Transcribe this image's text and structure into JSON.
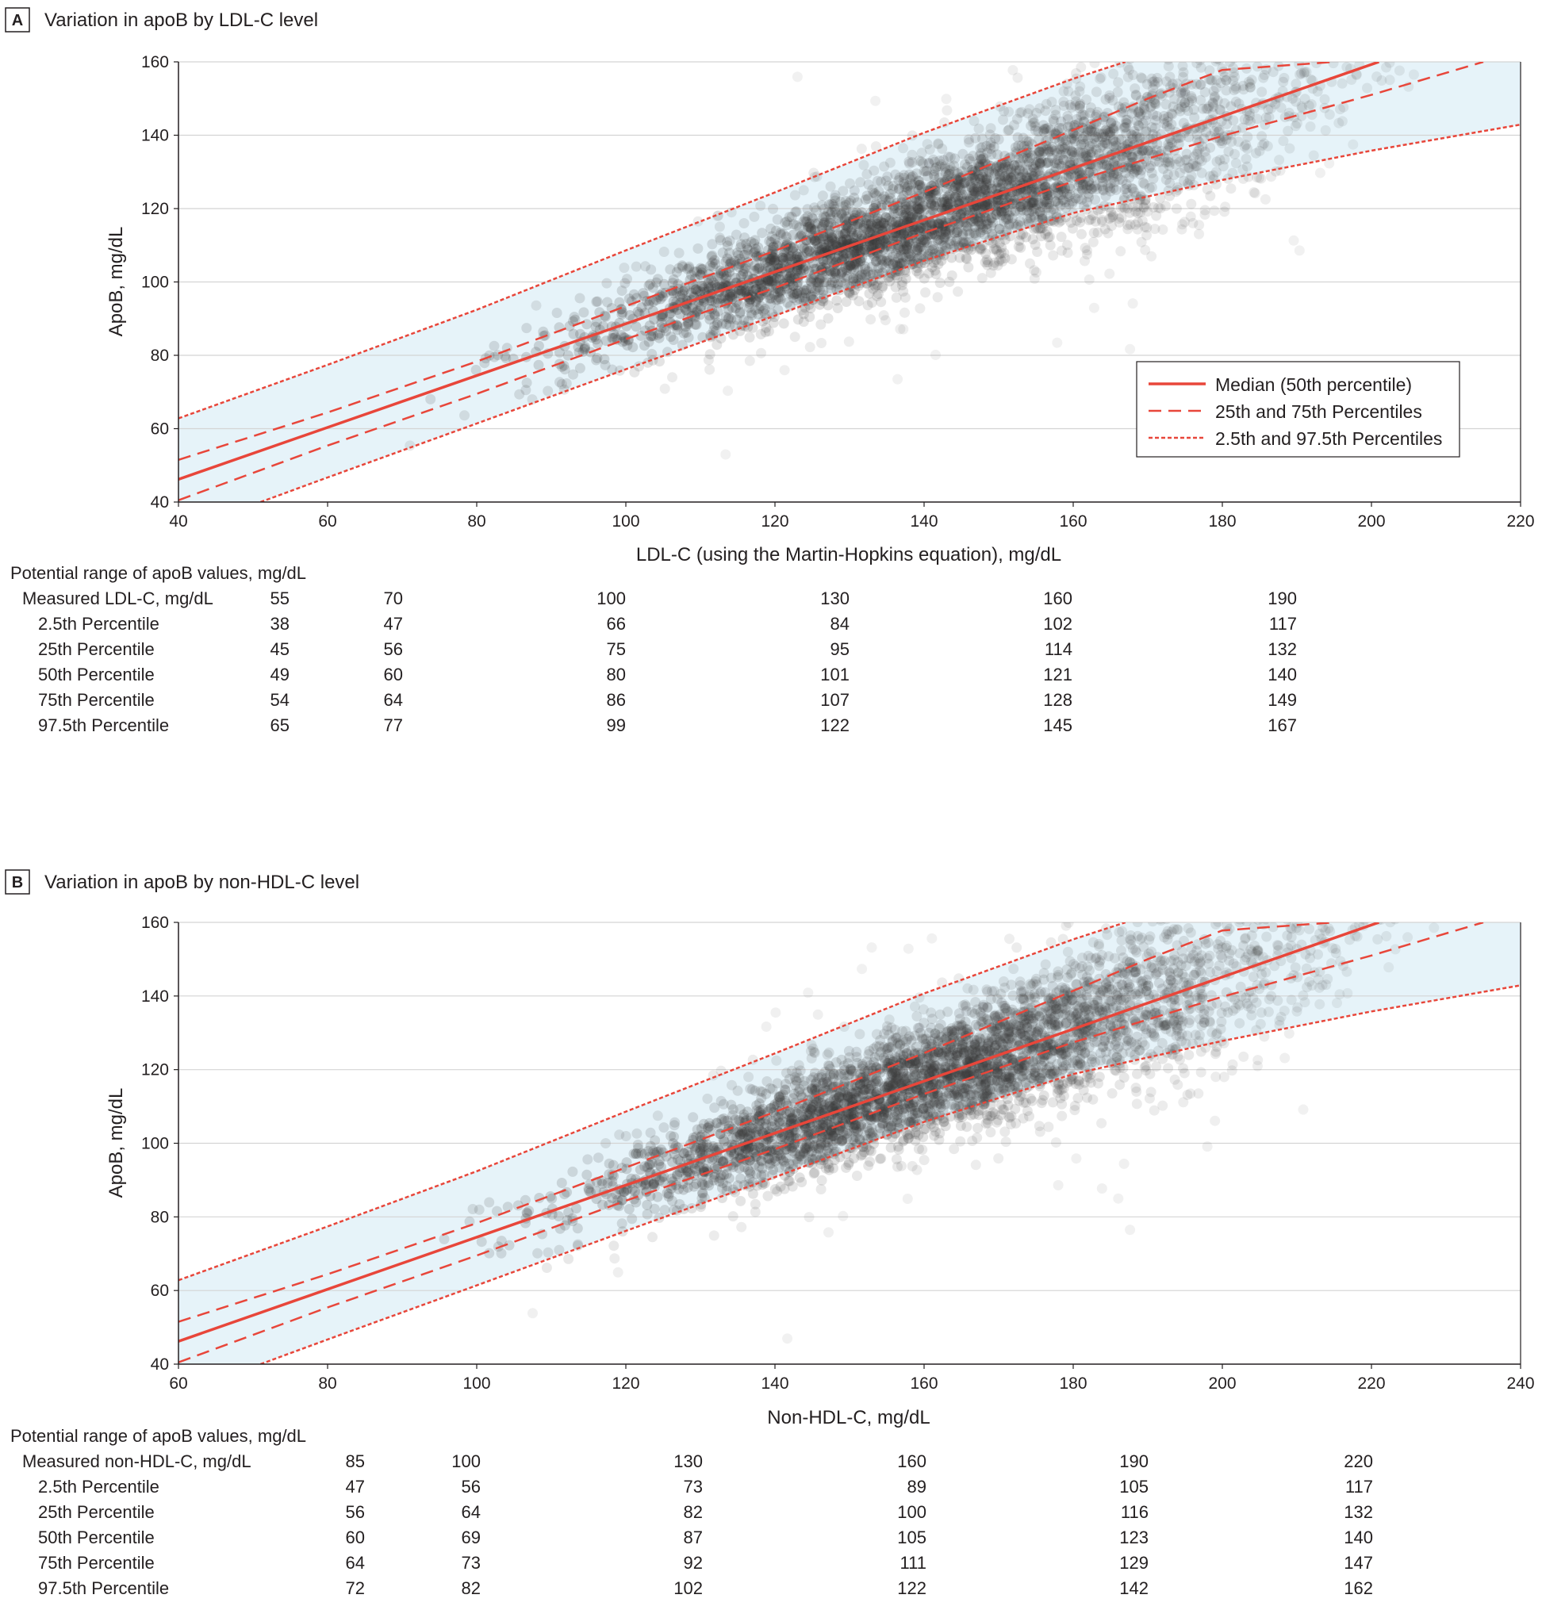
{
  "colors": {
    "line": "#e8463a",
    "point": "#3a3a3a",
    "band": "#e6f3f9",
    "grid": "#d4d4d4",
    "text": "#231f20"
  },
  "legend": {
    "median": "Median (50th percentile)",
    "quartiles": "25th and 75th Percentiles",
    "extremes": "2.5th and 97.5th Percentiles"
  },
  "chart_data": [
    {
      "type": "scatter",
      "panel_letter": "A",
      "title": "Variation in apoB by LDL-C level",
      "xlabel": "LDL-C (using the Martin-Hopkins equation), mg/dL",
      "ylabel": "ApoB, mg/dL",
      "xlim": [
        40,
        220
      ],
      "ylim": [
        40,
        160
      ],
      "xticks": [
        40,
        60,
        80,
        100,
        120,
        140,
        160,
        180,
        200,
        220
      ],
      "yticks": [
        40,
        60,
        80,
        100,
        120,
        140,
        160
      ],
      "grid": "horizontal",
      "legend_position": "lower-right",
      "series": [
        {
          "name": "Median (50th percentile)",
          "style": "solid",
          "x": [
            40,
            201
          ],
          "y": [
            46.2,
            160
          ]
        },
        {
          "name": "25th and 75th Percentiles",
          "style": "dashed",
          "x": [
            40,
            60,
            80,
            100,
            120,
            140,
            160,
            170,
            180,
            195
          ],
          "y": [
            51.5,
            64.4,
            78.3,
            93.4,
            108.5,
            124.5,
            141.4,
            150,
            157.8,
            160
          ]
        },
        {
          "name": "25th and 75th Percentiles",
          "style": "dashed",
          "x": [
            40,
            60,
            80,
            100,
            120,
            140,
            160,
            180,
            200,
            215
          ],
          "y": [
            40.5,
            55.4,
            69.5,
            84.4,
            98.4,
            113.4,
            127.4,
            139.8,
            151,
            160
          ]
        },
        {
          "name": "2.5th and 97.5th Percentiles",
          "style": "dotted",
          "x": [
            40,
            60,
            80,
            100,
            120,
            140,
            160,
            167
          ],
          "y": [
            62.8,
            77.4,
            92.4,
            108.6,
            124.4,
            140.7,
            155.4,
            160
          ]
        },
        {
          "name": "2.5th and 97.5th Percentiles",
          "style": "dotted",
          "x": [
            51,
            60,
            80,
            100,
            120,
            140,
            160,
            180,
            200,
            220
          ],
          "y": [
            40,
            46.7,
            61.4,
            76.2,
            90.8,
            105.8,
            118.8,
            127.8,
            135.8,
            142.9
          ]
        }
      ],
      "table": {
        "caption": "Potential range of apoB values, mg/dL",
        "rows": [
          {
            "label": "Measured LDL-C, mg/dL",
            "values": [
              "55",
              "70",
              "100",
              "130",
              "160",
              "190"
            ]
          },
          {
            "label": "2.5th Percentile",
            "values": [
              "38",
              "47",
              "66",
              "84",
              "102",
              "117"
            ]
          },
          {
            "label": "25th Percentile",
            "values": [
              "45",
              "56",
              "75",
              "95",
              "114",
              "132"
            ]
          },
          {
            "label": "50th Percentile",
            "values": [
              "49",
              "60",
              "80",
              "101",
              "121",
              "140"
            ]
          },
          {
            "label": "75th Percentile",
            "values": [
              "54",
              "64",
              "86",
              "107",
              "128",
              "149"
            ]
          },
          {
            "label": "97.5th Percentile",
            "values": [
              "65",
              "77",
              "99",
              "122",
              "145",
              "167"
            ]
          }
        ]
      }
    },
    {
      "type": "scatter",
      "panel_letter": "B",
      "title": "Variation in apoB by non-HDL-C level",
      "xlabel": "Non-HDL-C, mg/dL",
      "ylabel": "ApoB, mg/dL",
      "xlim": [
        60,
        240
      ],
      "ylim": [
        40,
        160
      ],
      "xticks": [
        60,
        80,
        100,
        120,
        140,
        160,
        180,
        200,
        220,
        240
      ],
      "yticks": [
        40,
        60,
        80,
        100,
        120,
        140,
        160
      ],
      "grid": "horizontal",
      "series": [
        {
          "name": "Median (50th percentile)",
          "style": "solid",
          "x": [
            60,
            221
          ],
          "y": [
            46.2,
            160
          ]
        },
        {
          "name": "25th and 75th Percentiles",
          "style": "dashed",
          "x": [
            60,
            80,
            100,
            120,
            140,
            160,
            180,
            190,
            200,
            215
          ],
          "y": [
            51.5,
            64.4,
            78.3,
            93.4,
            108.5,
            124.5,
            141.4,
            150,
            157.8,
            160
          ]
        },
        {
          "name": "25th and 75th Percentiles",
          "style": "dashed",
          "x": [
            60,
            80,
            100,
            120,
            140,
            160,
            180,
            200,
            220,
            235
          ],
          "y": [
            40.5,
            55.4,
            69.5,
            84.4,
            98.4,
            113.4,
            127.4,
            139.8,
            151,
            160
          ]
        },
        {
          "name": "2.5th and 97.5th Percentiles",
          "style": "dotted",
          "x": [
            60,
            80,
            100,
            120,
            140,
            160,
            180,
            187
          ],
          "y": [
            62.8,
            77.4,
            92.4,
            108.6,
            124.4,
            140.7,
            155.4,
            160
          ]
        },
        {
          "name": "2.5th and 97.5th Percentiles",
          "style": "dotted",
          "x": [
            71,
            80,
            100,
            120,
            140,
            160,
            180,
            200,
            220,
            240
          ],
          "y": [
            40,
            46.7,
            61.4,
            76.2,
            90.8,
            105.8,
            118.8,
            127.8,
            135.8,
            142.9
          ]
        }
      ],
      "table": {
        "caption": "Potential range of apoB values, mg/dL",
        "rows": [
          {
            "label": "Measured non-HDL-C, mg/dL",
            "values": [
              "85",
              "100",
              "130",
              "160",
              "190",
              "220"
            ]
          },
          {
            "label": "2.5th Percentile",
            "values": [
              "47",
              "56",
              "73",
              "89",
              "105",
              "117"
            ]
          },
          {
            "label": "25th Percentile",
            "values": [
              "56",
              "64",
              "82",
              "100",
              "116",
              "132"
            ]
          },
          {
            "label": "50th Percentile",
            "values": [
              "60",
              "69",
              "87",
              "105",
              "123",
              "140"
            ]
          },
          {
            "label": "75th Percentile",
            "values": [
              "64",
              "73",
              "92",
              "111",
              "129",
              "147"
            ]
          },
          {
            "label": "97.5th Percentile",
            "values": [
              "72",
              "82",
              "102",
              "122",
              "142",
              "162"
            ]
          }
        ]
      }
    }
  ]
}
